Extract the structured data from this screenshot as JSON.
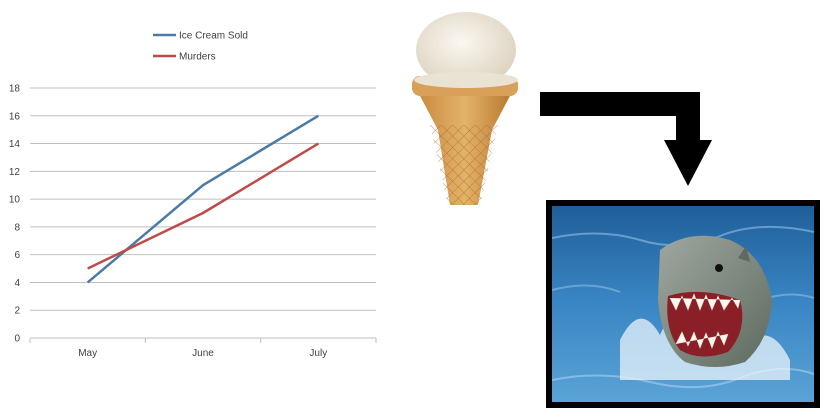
{
  "chart_data": {
    "type": "line",
    "categories": [
      "May",
      "June",
      "July"
    ],
    "series": [
      {
        "name": "Ice Cream Sold",
        "values": [
          4,
          11,
          16
        ],
        "color": "#4a7ba7"
      },
      {
        "name": "Murders",
        "values": [
          5,
          9,
          14
        ],
        "color": "#be4b48"
      }
    ],
    "title": "",
    "xlabel": "",
    "ylabel": "",
    "ylim": [
      0,
      18
    ],
    "yticks": [
      "0",
      "2",
      "4",
      "6",
      "8",
      "10",
      "12",
      "14",
      "16",
      "18"
    ],
    "grid": true,
    "legend_position": "top"
  },
  "illustration": {
    "items": [
      "ice-cream-cone-icon",
      "arrow-icon",
      "shark-photo"
    ],
    "colors": {
      "cone": "#d9a45a",
      "scoop": "#f2ece1",
      "arrow": "#000000",
      "water": "#2f78b8",
      "frame": "#000000"
    }
  }
}
